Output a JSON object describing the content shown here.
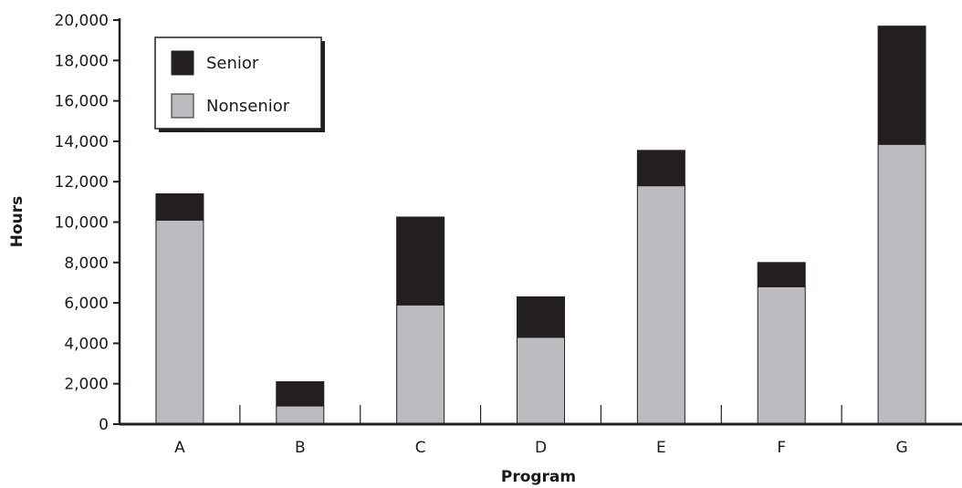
{
  "chart_data": {
    "type": "bar",
    "stacked": true,
    "title": "",
    "xlabel": "Program",
    "ylabel": "Hours",
    "categories": [
      "A",
      "B",
      "C",
      "D",
      "E",
      "F",
      "G"
    ],
    "series": [
      {
        "name": "Nonsenior",
        "values": [
          10100,
          900,
          5900,
          4300,
          11800,
          6800,
          13850
        ],
        "color": "#bcbcc0"
      },
      {
        "name": "Senior",
        "values": [
          1300,
          1200,
          4350,
          2000,
          1750,
          1200,
          5850
        ],
        "color": "#231f20"
      }
    ],
    "ylim": [
      0,
      20000
    ],
    "yticks": [
      0,
      2000,
      4000,
      6000,
      8000,
      10000,
      12000,
      14000,
      16000,
      18000,
      20000
    ],
    "ytick_labels": [
      "0",
      "2,000",
      "4,000",
      "6,000",
      "8,000",
      "10,000",
      "12,000",
      "14,000",
      "16,000",
      "18,000",
      "20,000"
    ],
    "grid": false,
    "legend": {
      "placement": "top-left",
      "order": [
        "Senior",
        "Nonsenior"
      ]
    }
  }
}
